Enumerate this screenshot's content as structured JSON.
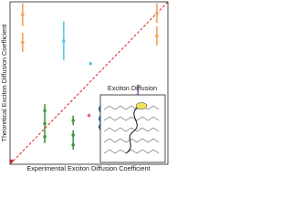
{
  "chart_data": {
    "type": "scatter",
    "x_label": "Experimental Exciton Diffusion Coefficient",
    "y_label": "Theoretical Exciton Diffusion Coefficient",
    "annotations": [
      "Exciton Diffusion"
    ],
    "xlim": [
      0,
      1
    ],
    "ylim": [
      0,
      1
    ],
    "series": [
      {
        "color": "#f5a35c",
        "x": [
          0.08,
          0.08,
          0.93,
          0.93
        ],
        "values": [
          0.92,
          0.75,
          0.93,
          0.79
        ],
        "errors": [
          0.07,
          0.06,
          0.06,
          0.06
        ]
      },
      {
        "color": "#5bc8ec",
        "x": [
          0.34,
          0.51
        ],
        "values": [
          0.76,
          0.62
        ],
        "errors": [
          0.12,
          null
        ]
      },
      {
        "color": "#8e5bb5",
        "x": [
          0.81
        ],
        "values": [
          0.42
        ],
        "errors": [
          0.07
        ]
      },
      {
        "color": "#2f66b3",
        "x": [
          0.57,
          0.57,
          0.57
        ],
        "values": [
          0.34,
          0.28,
          0.23
        ],
        "errors": [
          0.02,
          0.02,
          0.02
        ]
      },
      {
        "color": "#3f9a3c",
        "x": [
          0.22,
          0.22,
          0.22,
          0.4,
          0.4,
          0.4
        ],
        "values": [
          0.33,
          0.25,
          0.17,
          0.27,
          0.18,
          0.12
        ],
        "errors": [
          0.04,
          0.04,
          0.04,
          0.03,
          0.03,
          0.03
        ]
      },
      {
        "color": "#e8607a",
        "x": [
          0.5
        ],
        "values": [
          0.3
        ],
        "errors": [
          null
        ]
      },
      {
        "color": "#d9302c",
        "x": [
          0.01
        ],
        "values": [
          0.02
        ],
        "errors": [
          null
        ]
      }
    ]
  }
}
